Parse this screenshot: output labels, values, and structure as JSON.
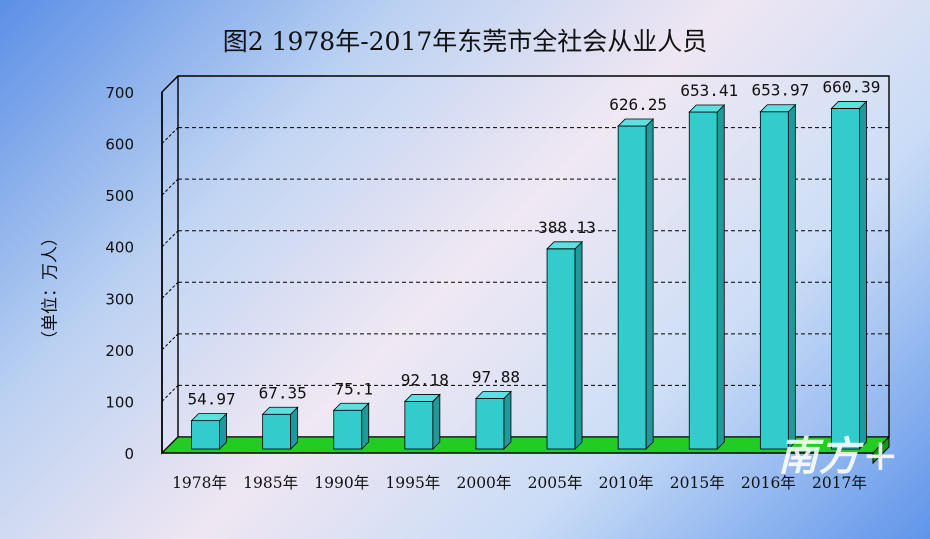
{
  "title": "图2  1978年-2017年东莞市全社会从业人员",
  "watermark": {
    "text": "南方",
    "plus": "+"
  },
  "colors": {
    "bar_front": "#33cccc",
    "bar_side": "#1f9999",
    "bar_top": "#5ce0e0",
    "floor": "#22cc22",
    "frame": "#000000"
  },
  "chart_data": {
    "type": "bar",
    "title": "图2  1978年-2017年东莞市全社会从业人员",
    "ylabel": "（单位：万人）",
    "xlabel": "",
    "categories": [
      "1978年",
      "1985年",
      "1990年",
      "1995年",
      "2000年",
      "2005年",
      "2010年",
      "2015年",
      "2016年",
      "2017年"
    ],
    "values": [
      54.97,
      67.35,
      75.1,
      92.18,
      97.88,
      388.13,
      626.25,
      653.41,
      653.97,
      660.39
    ],
    "data_labels": [
      "54.97",
      "67.35",
      "75.1",
      "92.18",
      "97.88",
      "388.13",
      "626.25",
      "653.41",
      "653.97",
      "660.39"
    ],
    "ylim": [
      0,
      700
    ],
    "yticks": [
      0,
      100,
      200,
      300,
      400,
      500,
      600,
      700
    ],
    "grid": true,
    "legend": "none"
  }
}
